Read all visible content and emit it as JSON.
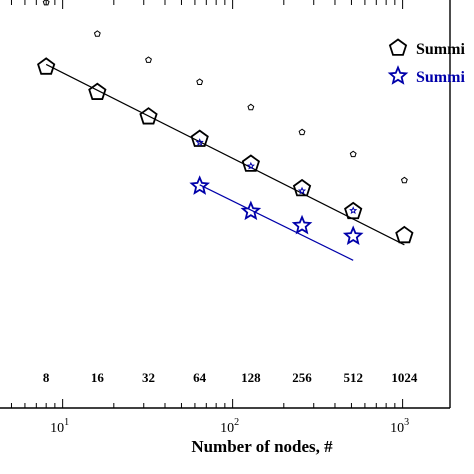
{
  "chart_data": {
    "type": "scatter",
    "title": "",
    "xlabel": "Number of nodes, #",
    "ylabel": "",
    "x_scale": "log",
    "xlim": [
      4,
      1900
    ],
    "ylim": [
      0,
      1
    ],
    "y_values_note": "",
    "x_tick_labels": [
      {
        "x": 10,
        "base": "10",
        "exp": "1"
      },
      {
        "x": 100,
        "base": "10",
        "exp": "2"
      },
      {
        "x": 1000,
        "base": "10",
        "exp": "3"
      }
    ],
    "node_count_labels": [
      {
        "x": 8,
        "text": "8"
      },
      {
        "x": 16,
        "text": "16"
      },
      {
        "x": 32,
        "text": "32"
      },
      {
        "x": 64,
        "text": "64"
      },
      {
        "x": 128,
        "text": "128"
      },
      {
        "x": 256,
        "text": "256"
      },
      {
        "x": 512,
        "text": "512"
      },
      {
        "x": 1024,
        "text": "1024"
      }
    ],
    "legend": {
      "placement": "top-right",
      "entries": [
        {
          "label": "Summi",
          "marker": "pentagon",
          "color": "#000000"
        },
        {
          "label": "Summi",
          "marker": "star",
          "color": "#0000aa"
        }
      ]
    },
    "series": [
      {
        "marker": "pentagon",
        "color": "#000000",
        "x": [
          8,
          16,
          32,
          64,
          128,
          256,
          512,
          1024
        ],
        "y": [
          0.836,
          0.774,
          0.714,
          0.659,
          0.598,
          0.538,
          0.482,
          0.423
        ]
      },
      {
        "marker": "star",
        "color": "#0000aa",
        "x": [
          64,
          128,
          256,
          512
        ],
        "y": [
          0.544,
          0.482,
          0.447,
          0.421
        ]
      },
      {
        "marker": "small-pentagon",
        "color": "#000000",
        "x": [
          8,
          16,
          32,
          64,
          128,
          256,
          512,
          1024
        ],
        "y": [
          0.994,
          0.917,
          0.853,
          0.799,
          0.737,
          0.676,
          0.622,
          0.558
        ]
      },
      {
        "marker": "small-star",
        "color": "#0000aa",
        "x": [
          64,
          128,
          256,
          512
        ],
        "y": [
          0.651,
          0.593,
          0.532,
          0.484
        ]
      }
    ],
    "fit_lines": [
      {
        "color": "#000000",
        "x": [
          8,
          1024
        ],
        "y": [
          0.842,
          0.4
        ]
      },
      {
        "color": "#0000aa",
        "x": [
          64,
          512
        ],
        "y": [
          0.547,
          0.362
        ]
      }
    ],
    "grid": false
  }
}
